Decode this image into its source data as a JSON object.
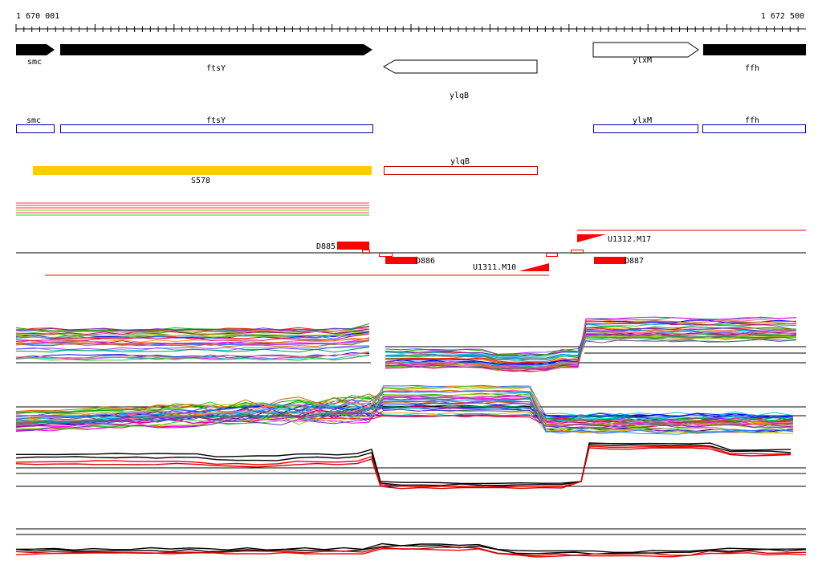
{
  "ruler": {
    "start_label": "1 670 001",
    "end_label": "1 672 500"
  },
  "genes_top": [
    {
      "name": "smc",
      "strand": "+",
      "style": "filled"
    },
    {
      "name": "ftsY",
      "strand": "+",
      "style": "filled"
    },
    {
      "name": "ylqB",
      "strand": "-",
      "style": "outline"
    },
    {
      "name": "ylxM",
      "strand": "+",
      "style": "outline"
    },
    {
      "name": "ffh",
      "strand": "+",
      "style": "filled"
    }
  ],
  "gene_boxes": [
    {
      "name": "smc",
      "color": "#0000aa"
    },
    {
      "name": "ftsY",
      "color": "#0000aa"
    },
    {
      "name": "ylxM",
      "color": "#0000aa"
    },
    {
      "name": "ffh",
      "color": "#0000aa"
    },
    {
      "name": "ylqB",
      "color": "#cc0000"
    }
  ],
  "segments": [
    {
      "name": "S578",
      "color": "#ffcc00"
    }
  ],
  "features": [
    {
      "name": "D885"
    },
    {
      "name": "D886"
    },
    {
      "name": "U1311.M10"
    },
    {
      "name": "U1312.M17"
    },
    {
      "name": "D887"
    }
  ],
  "colors": {
    "accent_red": "#ff0000",
    "gene_blue": "#0000aa",
    "segment_yellow": "#ffcc00"
  }
}
